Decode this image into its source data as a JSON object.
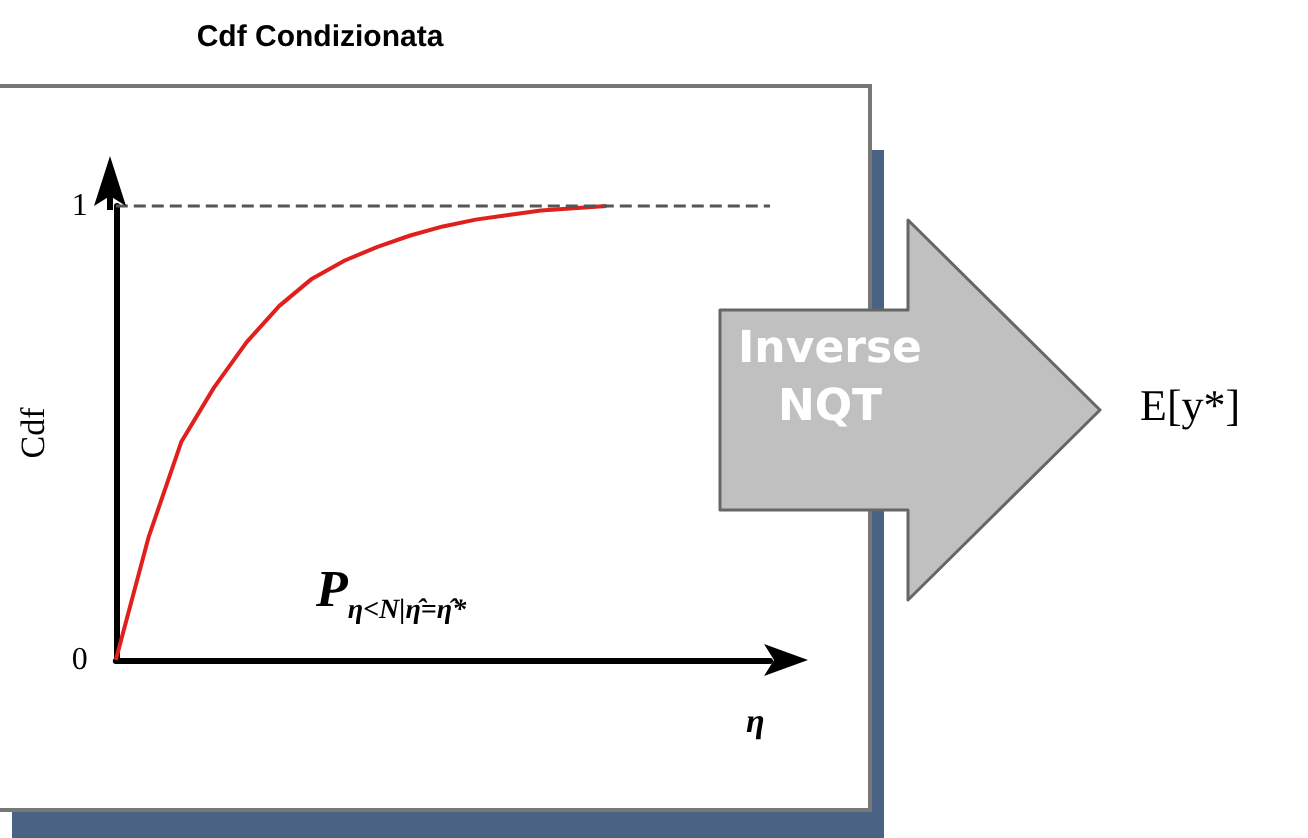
{
  "chart_data": {
    "type": "line",
    "title": "Cdf Condizionata",
    "xlabel": "η",
    "ylabel": "Cdf",
    "categories": [
      null,
      null,
      null,
      null,
      null,
      null,
      null,
      null,
      null,
      null,
      null,
      null,
      null,
      null,
      null,
      null,
      null,
      null,
      null,
      null,
      null
    ],
    "series": [
      {
        "color": "#e0201c",
        "values": [
          0,
          0.27,
          0.48,
          0.6,
          0.7,
          0.78,
          0.84,
          0.88,
          0.91,
          0.935,
          0.955,
          0.97,
          0.98,
          0.99,
          0.995,
          1,
          null,
          null,
          null,
          null,
          null
        ]
      }
    ],
    "ylim": [
      0,
      1
    ],
    "yticks": [
      0,
      1
    ],
    "grid": false,
    "marker": "none",
    "line_style": "solid",
    "ref_lines": [
      {
        "axis": "y",
        "value": 1,
        "color": "#555555",
        "line_style": "dashed"
      }
    ],
    "annotations": [
      "P$_{η<N|η̂=η̂*}$",
      "Inverse NQT",
      "E[y*]"
    ]
  }
}
